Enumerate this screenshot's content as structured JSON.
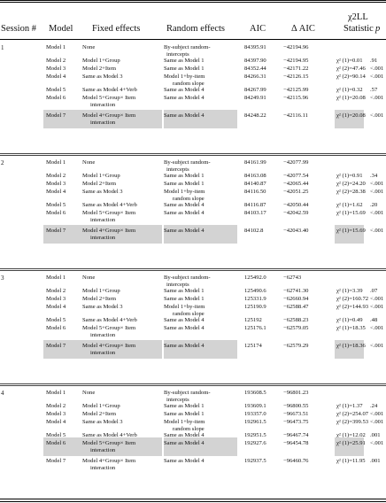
{
  "header": {
    "session": "Session #",
    "model": "Model",
    "fixed": "Fixed effects",
    "random": "Random effects",
    "aic": "AIC",
    "daic": "Δ AIC",
    "chi_top": "χ2LL",
    "chi_bottom": "Statistic",
    "p": "p"
  },
  "sessions": [
    {
      "id": "1",
      "rows": [
        {
          "model": "Model 1",
          "fixed": "None",
          "random": "By-subject random-",
          "random2": "intercepts",
          "aic": "84395.91",
          "daic": "−42194.96",
          "chi": "",
          "p": "",
          "hl": false
        },
        {
          "model": "Model 2",
          "fixed": "Model 1+Group",
          "random": "Same as Model 1",
          "random2": "",
          "aic": "84397.90",
          "daic": "−42194.95",
          "chi": "χ² (1)=0.01",
          "p": ".91",
          "hl": false
        },
        {
          "model": "Model 3",
          "fixed": "Model 2+Item",
          "random": "Same as Model 1",
          "random2": "",
          "aic": "84352.44",
          "daic": "−42171.22",
          "chi": "χ² (2)=47.46",
          "p": "<.001",
          "hl": false
        },
        {
          "model": "Model 4",
          "fixed": "Same as Model 3",
          "random": "Model 1+by-item",
          "random2": "random slope",
          "aic": "84266.31",
          "daic": "−42126.15",
          "chi": "χ² (2)=90.14",
          "p": "<.001",
          "hl": false
        },
        {
          "model": "Model 5",
          "fixed": "Same as Model 4+Verb",
          "random": "Same as Model 4",
          "random2": "",
          "aic": "84267.99",
          "daic": "−42125.99",
          "chi": "χ² (1)=0.32",
          "p": ".57",
          "hl": false
        },
        {
          "model": "Model 6",
          "fixed": "Model 5+Group× Item",
          "fixed2": "interaction",
          "random": "Same as Model 4",
          "random2": "",
          "aic": "84249.91",
          "daic": "−42115.96",
          "chi": "χ² (1)=20.08",
          "p": "<.001",
          "hl": false
        },
        {
          "model": "Model 7",
          "fixed": "Model 4+Group× Item",
          "fixed2": "interaction",
          "random": "Same as Model 4",
          "random2": "",
          "aic": "84248.22",
          "daic": "−42116.11",
          "chi": "χ² (1)=20.08",
          "p": "<.001",
          "hl": true
        }
      ]
    },
    {
      "id": "2",
      "rows": [
        {
          "model": "Model 1",
          "fixed": "None",
          "random": "By-subject random-",
          "random2": "intercepts",
          "aic": "84161.99",
          "daic": "−42077.99",
          "chi": "",
          "p": "",
          "hl": false
        },
        {
          "model": "Model 2",
          "fixed": "Model 1+Group",
          "random": "Same as Model 1",
          "random2": "",
          "aic": "84163.08",
          "daic": "−42077.54",
          "chi": "χ² (1)=0.91",
          "p": ".34",
          "hl": false
        },
        {
          "model": "Model 3",
          "fixed": "Model 2+Item",
          "random": "Same as Model 1",
          "random2": "",
          "aic": "84140.87",
          "daic": "−42065.44",
          "chi": "χ² (2)=24.20",
          "p": "<.001",
          "hl": false
        },
        {
          "model": "Model 4",
          "fixed": "Same as Model 3",
          "random": "Model 1+by-item",
          "random2": "random slope",
          "aic": "84116.50",
          "daic": "−42051.25",
          "chi": "χ² (2)=28.38",
          "p": "<.001",
          "hl": false
        },
        {
          "model": "Model 5",
          "fixed": "Same as Model 4+Verb",
          "random": "Same as Model 4",
          "random2": "",
          "aic": "84116.87",
          "daic": "−42050.44",
          "chi": "χ² (1)=1.62",
          "p": ".20",
          "hl": false
        },
        {
          "model": "Model 6",
          "fixed": "Model 5+Group× Item",
          "fixed2": "interaction",
          "random": "Same as Model 4",
          "random2": "",
          "aic": "84103.17",
          "daic": "−42042.59",
          "chi": "χ² (1)=15.69",
          "p": "<.001",
          "hl": false
        },
        {
          "model": "Model 7",
          "fixed": "Model 4+Group× Item",
          "fixed2": "interaction",
          "random": "Same as Model 4",
          "random2": "",
          "aic": "84102.8",
          "daic": "−42043.40",
          "chi": "χ² (1)=15.69",
          "p": "<.001",
          "hl": true
        }
      ]
    },
    {
      "id": "3",
      "rows": [
        {
          "model": "Model 1",
          "fixed": "None",
          "random": "By-subject random-",
          "random2": "intercepts",
          "aic": "125492.0",
          "daic": "−62743",
          "chi": "",
          "p": "",
          "hl": false
        },
        {
          "model": "Model 2",
          "fixed": "Model 1+Group",
          "random": "Same as Model 1",
          "random2": "",
          "aic": "125490.6",
          "daic": "−62741.30",
          "chi": "χ² (1)=3.39",
          "p": ".07",
          "hl": false
        },
        {
          "model": "Model 3",
          "fixed": "Model 2+Item",
          "random": "Same as Model 1",
          "random2": "",
          "aic": "125331.9",
          "daic": "−62660.94",
          "chi": "χ² (2)=160.72",
          "p": "<.001",
          "hl": false
        },
        {
          "model": "Model 4",
          "fixed": "Same as Model 3",
          "random": "Model 1+by-item",
          "random2": "random slope",
          "aic": "125190.9",
          "daic": "−62588.47",
          "chi": "χ² (2)=144.93",
          "p": "<.001",
          "hl": false
        },
        {
          "model": "Model 5",
          "fixed": "Same as Model 4+Verb",
          "random": "Same as Model 4",
          "random2": "",
          "aic": "125192",
          "daic": "−62588.23",
          "chi": "χ² (1)=0.49",
          "p": ".48",
          "hl": false
        },
        {
          "model": "Model 6",
          "fixed": "Model 5+Group× Item",
          "fixed2": "interaction",
          "random": "Same as Model 4",
          "random2": "",
          "aic": "125176.1",
          "daic": "−62579.05",
          "chi": "χ² (1)=18.35",
          "p": "<.001",
          "hl": false
        },
        {
          "model": "Model 7",
          "fixed": "Model 4+Group× Item",
          "fixed2": "interaction",
          "random": "Same as Model 4",
          "random2": "",
          "aic": "125174",
          "daic": "−62579.29",
          "chi": "χ² (1)=18.36",
          "p": "<.001",
          "hl": true
        }
      ]
    },
    {
      "id": "4",
      "rows": [
        {
          "model": "Model 1",
          "fixed": "None",
          "random": "By-subject random-",
          "random2": "intercepts",
          "aic": "193608.5",
          "daic": "−96801.23",
          "chi": "",
          "p": "",
          "hl": false
        },
        {
          "model": "Model 2",
          "fixed": "Model 1+Group",
          "random": "Same as Model 1",
          "random2": "",
          "aic": "193609.1",
          "daic": "−96800.55",
          "chi": "χ² (1)=1.37",
          "p": ".24",
          "hl": false
        },
        {
          "model": "Model 3",
          "fixed": "Model 2+Item",
          "random": "Same as Model 1",
          "random2": "",
          "aic": "193357.0",
          "daic": "−96673.51",
          "chi": "χ² (2)=254.07",
          "p": "<.001",
          "hl": false
        },
        {
          "model": "Model 4",
          "fixed": "Same as Model 3",
          "random": "Model 1+by-item",
          "random2": "random slope",
          "aic": "192961.5",
          "daic": "−96473.75",
          "chi": "χ² (2)=399.53",
          "p": "<.001",
          "hl": false
        },
        {
          "model": "Model 5",
          "fixed": "Same as Model 4+Verb",
          "random": "Same as Model 4",
          "random2": "",
          "aic": "192951.5",
          "daic": "−96467.74",
          "chi": "χ² (1)=12.02",
          "p": ".001",
          "hl": false
        },
        {
          "model": "Model 6",
          "fixed": "Model 5+Group× Item",
          "fixed2": "interaction",
          "random": "Same as Model 4",
          "random2": "",
          "aic": "192927.6",
          "daic": "−96454.78",
          "chi": "χ² (1)=25.91",
          "p": "<.001",
          "hl": true
        },
        {
          "model": "Model 7",
          "fixed": "Model 4+Group× Item",
          "fixed2": "interaction",
          "random": "Same as Model 4",
          "random2": "",
          "aic": "192937.5",
          "daic": "−96460.76",
          "chi": "χ² (1)=11.95",
          "p": ".001",
          "hl": false
        }
      ]
    }
  ]
}
